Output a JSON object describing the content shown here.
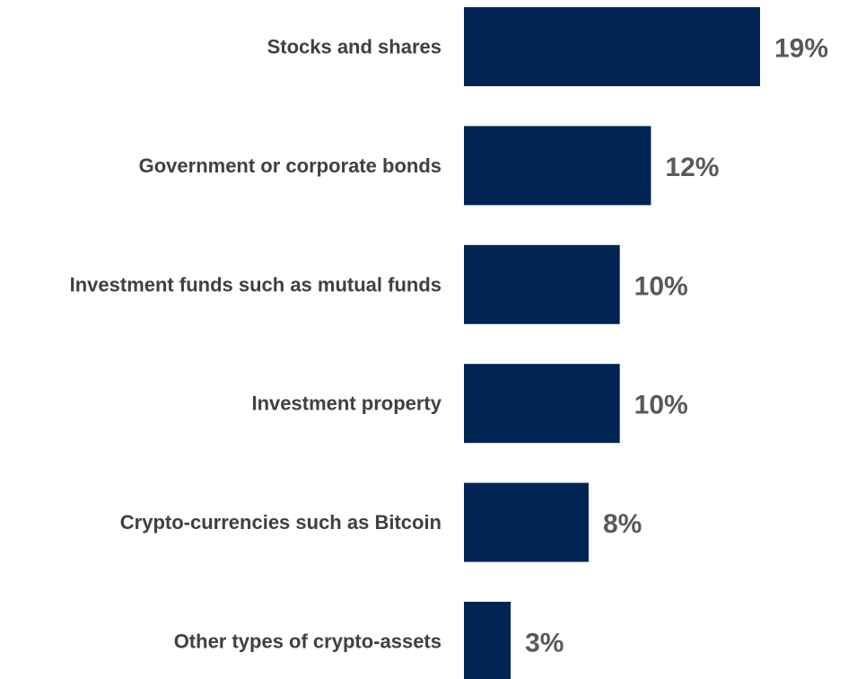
{
  "chart_data": {
    "type": "bar",
    "orientation": "horizontal",
    "categories": [
      "Stocks and shares",
      "Government or corporate bonds",
      "Investment funds such as mutual funds",
      "Investment property",
      "Crypto-currencies such as Bitcoin",
      "Other types of crypto-assets"
    ],
    "values": [
      19,
      12,
      10,
      10,
      8,
      3
    ],
    "value_labels": [
      "19%",
      "12%",
      "10%",
      "10%",
      "8%",
      "3%"
    ],
    "unit": "%",
    "xlim": [
      0,
      19
    ],
    "grid": false,
    "legend": "none",
    "bar_color": "#002554",
    "title": "",
    "xlabel": "",
    "ylabel": ""
  }
}
